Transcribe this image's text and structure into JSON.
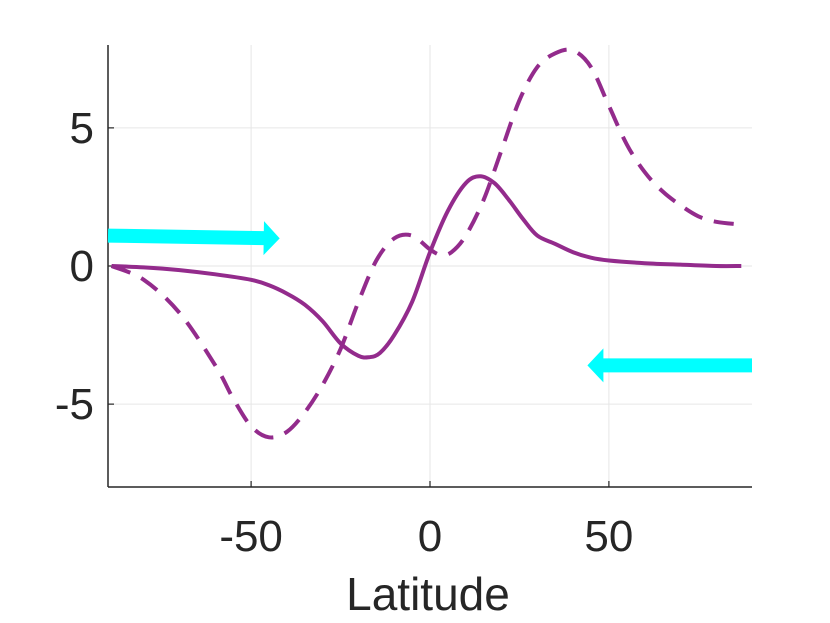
{
  "chart_data": {
    "type": "line",
    "xlabel": "Latitude",
    "ylabel": "",
    "title": "",
    "xlim": [
      -90,
      90
    ],
    "ylim": [
      -8,
      8
    ],
    "xticks": [
      -50,
      0,
      50
    ],
    "xtick_labels": [
      "-50",
      "0",
      "50"
    ],
    "yticks": [
      -5,
      0,
      5
    ],
    "ytick_labels": [
      "-5",
      "0",
      "5"
    ],
    "grid": true,
    "series": [
      {
        "style": "solid",
        "color": "#932B8C",
        "x": [
          -89,
          -80,
          -70,
          -60,
          -50,
          -45,
          -40,
          -35,
          -30,
          -25,
          -20,
          -17,
          -14,
          -10,
          -5,
          0,
          5,
          10,
          14,
          18,
          22,
          26,
          30,
          35,
          40,
          45,
          50,
          60,
          70,
          80,
          87
        ],
        "y": [
          0,
          -0.05,
          -0.15,
          -0.3,
          -0.5,
          -0.7,
          -1.0,
          -1.4,
          -2.0,
          -2.8,
          -3.25,
          -3.3,
          -3.15,
          -2.5,
          -1.3,
          0.5,
          2.0,
          3.0,
          3.25,
          3.0,
          2.4,
          1.7,
          1.1,
          0.8,
          0.5,
          0.3,
          0.2,
          0.1,
          0.05,
          0.0,
          0.0
        ]
      },
      {
        "style": "dashed",
        "color": "#932B8C",
        "x": [
          -89,
          -80,
          -70,
          -60,
          -55,
          -50,
          -45,
          -40,
          -35,
          -30,
          -25,
          -20,
          -15,
          -10,
          -5,
          0,
          3,
          6,
          10,
          15,
          20,
          25,
          30,
          35,
          40,
          45,
          50,
          55,
          60,
          65,
          70,
          75,
          80,
          87
        ],
        "y": [
          0,
          -0.5,
          -1.7,
          -3.6,
          -4.8,
          -5.8,
          -6.2,
          -6.0,
          -5.3,
          -4.3,
          -3.0,
          -1.3,
          0.2,
          1.0,
          1.1,
          0.6,
          0.4,
          0.5,
          1.1,
          2.4,
          4.2,
          6.0,
          7.2,
          7.7,
          7.8,
          7.2,
          5.8,
          4.4,
          3.4,
          2.7,
          2.2,
          1.8,
          1.6,
          1.5
        ]
      }
    ],
    "annotations": [
      {
        "type": "arrow",
        "direction": "right",
        "color": "#00FFFF",
        "x_start": -90,
        "x_end": -42,
        "y_start": 1.1,
        "y_end": 1.0
      },
      {
        "type": "arrow",
        "direction": "left",
        "color": "#00FFFF",
        "x_start": 90,
        "x_end": 44,
        "y_start": -3.6,
        "y_end": -3.6
      }
    ]
  }
}
